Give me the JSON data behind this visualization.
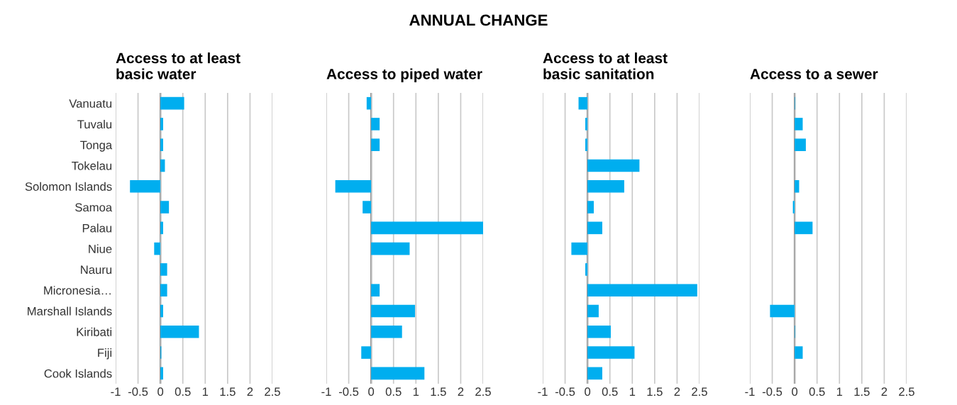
{
  "chart_data": [
    {
      "type": "bar",
      "orientation": "horizontal",
      "title": "Access to at least\nbasic water",
      "categories": [
        "Vanuatu",
        "Tuvalu",
        "Tonga",
        "Tokelau",
        "Solomon Islands",
        "Samoa",
        "Palau",
        "Niue",
        "Nauru",
        "Micronesia…",
        "Marshall Islands",
        "Kiribati",
        "Fiji",
        "Cook Islands"
      ],
      "values": [
        0.53,
        0.06,
        0.06,
        0.1,
        -0.68,
        0.19,
        0.06,
        -0.14,
        0.15,
        0.15,
        0.06,
        0.86,
        0.02,
        0.06
      ],
      "color": "#00aeef",
      "xlim": [
        -1,
        2.5
      ],
      "xticks": [
        -1,
        -0.5,
        0,
        0.5,
        1,
        1.5,
        2,
        2.5
      ],
      "grid": "x",
      "annotations": [
        "ANNUAL CHANGE"
      ]
    },
    {
      "type": "bar",
      "orientation": "horizontal",
      "title": "Access to piped water",
      "categories": [
        null,
        null,
        null,
        null,
        null,
        null,
        null,
        null,
        null,
        null,
        null,
        null,
        null,
        null
      ],
      "values": [
        -0.1,
        0.19,
        0.19,
        null,
        -0.8,
        -0.19,
        2.5,
        0.86,
        null,
        0.19,
        0.98,
        0.69,
        -0.22,
        1.19
      ],
      "color": "#00aeef",
      "xlim": [
        -1,
        2.5
      ],
      "xticks": [
        -1,
        -0.5,
        0,
        0.5,
        1,
        1.5,
        2,
        2.5
      ],
      "grid": "x",
      "tick_labels": "x"
    },
    {
      "type": "bar",
      "orientation": "horizontal",
      "title": "Access to at least\nbasic sanitation",
      "categories": [
        null,
        null,
        null,
        null,
        null,
        null,
        null,
        null,
        null,
        null,
        null,
        null,
        null,
        null
      ],
      "values": [
        -0.2,
        -0.05,
        -0.05,
        1.16,
        0.82,
        0.14,
        0.33,
        -0.36,
        -0.05,
        2.45,
        0.25,
        0.52,
        1.05,
        0.33
      ],
      "color": "#00aeef",
      "xlim": [
        -1,
        2.5
      ],
      "xticks": [
        -1,
        -0.5,
        0,
        0.5,
        1,
        1.5,
        2,
        2.5
      ],
      "grid": "x",
      "tick_labels": "x"
    },
    {
      "type": "bar",
      "orientation": "horizontal",
      "title": "Access to a sewer",
      "categories": [
        null,
        null,
        null,
        null,
        null,
        null,
        null,
        null,
        null,
        null,
        null,
        null,
        null,
        null
      ],
      "values": [
        0.01,
        0.18,
        0.25,
        null,
        0.1,
        -0.04,
        0.4,
        null,
        null,
        null,
        -0.55,
        0.01,
        0.18,
        null
      ],
      "color": "#00aeef",
      "xlim": [
        -1,
        2.5
      ],
      "xticks": [
        -1,
        -0.5,
        0,
        0.5,
        1,
        1.5,
        2,
        2.5
      ],
      "grid": "x",
      "tick_labels": "x"
    }
  ]
}
